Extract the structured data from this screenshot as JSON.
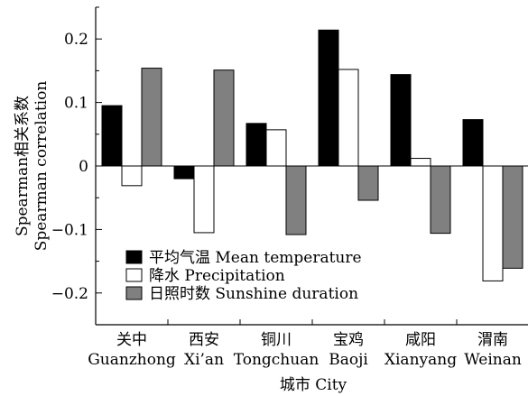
{
  "chart_data": {
    "type": "bar",
    "ylabel_cn": "Spearman相关系数",
    "ylabel_en": "Spearman correlation",
    "xlabel": "城市 City",
    "ylim": [
      -0.25,
      0.25
    ],
    "yticks": [
      0.2,
      0.1,
      0,
      -0.1,
      -0.2
    ],
    "ytick_labels": [
      "0.2",
      "0.1",
      "0",
      "−0.1",
      "−0.2"
    ],
    "categories": [
      {
        "cn": "关中",
        "en": "Guanzhong"
      },
      {
        "cn": "西安",
        "en": "Xi’an"
      },
      {
        "cn": "铜川",
        "en": "Tongchuan"
      },
      {
        "cn": "宝鸡",
        "en": "Baoji"
      },
      {
        "cn": "咸阳",
        "en": "Xianyang"
      },
      {
        "cn": "渭南",
        "en": "Weinan"
      }
    ],
    "series": [
      {
        "name": "平均气温 Mean temperature",
        "color": "#000000",
        "values": [
          0.095,
          -0.02,
          0.067,
          0.214,
          0.144,
          0.073
        ]
      },
      {
        "name": "降水 Precipitation",
        "color": "#ffffff",
        "values": [
          -0.031,
          -0.105,
          0.057,
          0.152,
          0.012,
          -0.181
        ]
      },
      {
        "name": "日照时数 Sunshine duration",
        "color": "#808080",
        "values": [
          0.154,
          0.151,
          -0.108,
          -0.054,
          -0.106,
          -0.161
        ]
      }
    ],
    "legend_position": "bottom-left",
    "grid": false
  }
}
